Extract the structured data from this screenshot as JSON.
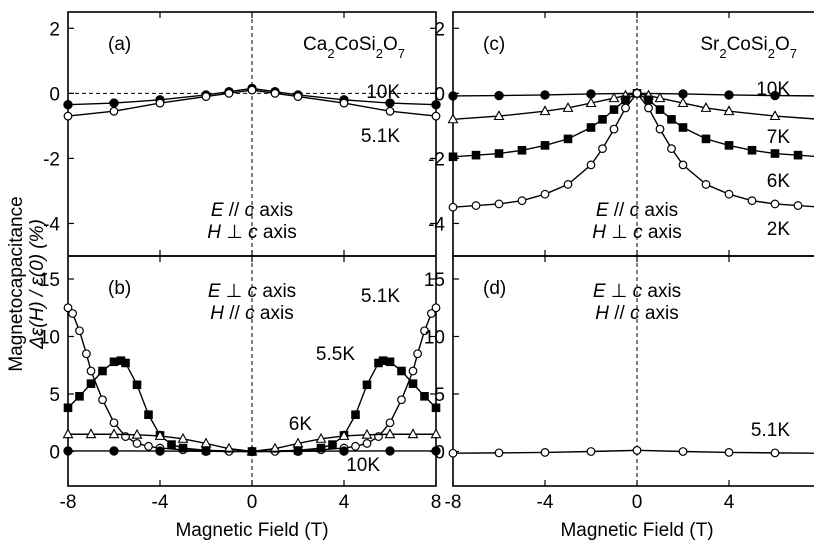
{
  "figure": {
    "ylabel_line1": "Magnetocapacitance",
    "ylabel_line2": "Δε(H) / ε(0) (%)",
    "xlabel": "Magnetic Field (T)",
    "colors": {
      "ink": "#000000",
      "open": "#ffffff",
      "background": "#ffffff"
    }
  },
  "chart_data": [
    {
      "panel": "a",
      "type": "scatter",
      "label": "(a)",
      "compound": "Ca2CoSi2O7",
      "compound_parts": [
        "Ca",
        "2",
        "CoSi",
        "2",
        "O",
        "7"
      ],
      "xlim": [
        -8,
        8
      ],
      "ylim": [
        -5,
        2.5
      ],
      "xticks": [
        -8,
        -4,
        0,
        4,
        8
      ],
      "yticks": [
        2,
        0,
        -2,
        -4
      ],
      "xticklabels_shown": false,
      "zero_hline": true,
      "field_annotation": [
        "E // c axis",
        "H ⊥ c axis"
      ],
      "series": [
        {
          "name": "10K",
          "marker": "filled-circle",
          "x": [
            -8,
            -6,
            -4,
            -2,
            -1,
            0,
            1,
            2,
            4,
            6,
            8
          ],
          "y": [
            -0.35,
            -0.3,
            -0.2,
            -0.05,
            0.05,
            0.15,
            0.05,
            -0.05,
            -0.2,
            -0.3,
            -0.35
          ]
        },
        {
          "name": "5.1K",
          "marker": "open-circle",
          "x": [
            -8,
            -6,
            -4,
            -2,
            -1,
            0,
            1,
            2,
            4,
            6,
            8
          ],
          "y": [
            -0.7,
            -0.55,
            -0.3,
            -0.1,
            0.0,
            0.1,
            0.0,
            -0.1,
            -0.3,
            -0.55,
            -0.7
          ]
        }
      ],
      "temp_labels": [
        "10K",
        "5.1K"
      ]
    },
    {
      "panel": "b",
      "type": "scatter",
      "label": "(b)",
      "xlim": [
        -8,
        8
      ],
      "ylim": [
        -3,
        17
      ],
      "xticks": [
        -8,
        -4,
        0,
        4,
        8
      ],
      "yticks": [
        15,
        10,
        5,
        0
      ],
      "xticklabels_shown": true,
      "field_annotation": [
        "E ⊥ c axis",
        "H // c axis"
      ],
      "series": [
        {
          "name": "5.1K",
          "marker": "open-circle",
          "x": [
            -8,
            -7.8,
            -7.5,
            -7.2,
            -7,
            -6.5,
            -6,
            -5.5,
            -5,
            -4.5,
            -4,
            -3,
            -2,
            -1,
            0,
            1,
            2,
            3,
            4,
            4.5,
            5,
            5.5,
            6,
            6.5,
            7,
            7.2,
            7.5,
            7.8,
            8
          ],
          "y": [
            12.5,
            12,
            10.5,
            8.5,
            7,
            4.5,
            2.5,
            1.3,
            0.7,
            0.45,
            0.3,
            0.15,
            0.05,
            0.01,
            0,
            0.01,
            0.05,
            0.15,
            0.3,
            0.45,
            0.7,
            1.3,
            2.5,
            4.5,
            7,
            8.5,
            10.5,
            12,
            12.5
          ]
        },
        {
          "name": "5.5K",
          "marker": "filled-square",
          "x": [
            -8,
            -7.5,
            -7,
            -6.5,
            -6,
            -5.7,
            -5.5,
            -5,
            -4.5,
            -4,
            -3.5,
            -3,
            -2,
            0,
            2,
            3,
            3.5,
            4,
            4.5,
            5,
            5.5,
            5.7,
            6,
            6.5,
            7,
            7.5,
            8
          ],
          "y": [
            3.8,
            4.8,
            5.9,
            7.0,
            7.8,
            7.9,
            7.7,
            5.8,
            3.2,
            1.4,
            0.6,
            0.3,
            0.1,
            0,
            0.1,
            0.3,
            0.6,
            1.4,
            3.2,
            5.8,
            7.7,
            7.9,
            7.8,
            7.0,
            5.9,
            4.8,
            3.8
          ]
        },
        {
          "name": "6K",
          "marker": "open-triangle",
          "x": [
            -8,
            -7,
            -6,
            -5,
            -4,
            -3,
            -2,
            -1,
            0,
            1,
            2,
            3,
            4,
            5,
            6,
            7,
            8
          ],
          "y": [
            1.5,
            1.5,
            1.5,
            1.45,
            1.35,
            1.1,
            0.7,
            0.25,
            0,
            0.25,
            0.7,
            1.1,
            1.35,
            1.45,
            1.5,
            1.5,
            1.5
          ]
        },
        {
          "name": "10K",
          "marker": "filled-circle",
          "x": [
            -8,
            -6,
            -4,
            -2,
            0,
            2,
            4,
            6,
            8
          ],
          "y": [
            0.05,
            0.05,
            0.04,
            0.02,
            0,
            0.02,
            0.04,
            0.05,
            0.05
          ]
        }
      ],
      "temp_labels": [
        "5.1K",
        "5.5K",
        "6K",
        "10K"
      ]
    },
    {
      "panel": "c",
      "type": "scatter",
      "label": "(c)",
      "compound": "Sr2CoSi2O7",
      "compound_parts": [
        "Sr",
        "2",
        "CoSi",
        "2",
        "O",
        "7"
      ],
      "xlim": [
        -8,
        8
      ],
      "ylim": [
        -5,
        2.5
      ],
      "xticks": [
        -8,
        -4,
        0,
        4,
        8
      ],
      "yticks": [
        2,
        0,
        -2,
        -4
      ],
      "xticklabels_shown": false,
      "field_annotation": [
        "E // c axis",
        "H ⊥ c axis"
      ],
      "series": [
        {
          "name": "10K",
          "marker": "filled-circle",
          "x": [
            -8,
            -6,
            -4,
            -2,
            0,
            2,
            4,
            6,
            8
          ],
          "y": [
            -0.08,
            -0.07,
            -0.05,
            -0.02,
            0,
            -0.02,
            -0.05,
            -0.07,
            -0.08
          ]
        },
        {
          "name": "7K",
          "marker": "open-triangle",
          "x": [
            -8,
            -6,
            -4,
            -3,
            -2,
            -1,
            -0.5,
            0,
            0.5,
            1,
            2,
            3,
            4,
            6,
            8
          ],
          "y": [
            -0.8,
            -0.7,
            -0.55,
            -0.45,
            -0.3,
            -0.15,
            -0.07,
            0,
            -0.07,
            -0.15,
            -0.3,
            -0.45,
            -0.55,
            -0.7,
            -0.8
          ]
        },
        {
          "name": "6K",
          "marker": "filled-square",
          "x": [
            -8,
            -7,
            -6,
            -5,
            -4,
            -3,
            -2,
            -1.5,
            -1,
            -0.5,
            0,
            0.5,
            1,
            1.5,
            2,
            3,
            4,
            5,
            6,
            7,
            8
          ],
          "y": [
            -1.95,
            -1.9,
            -1.85,
            -1.75,
            -1.6,
            -1.4,
            -1.05,
            -0.8,
            -0.5,
            -0.2,
            0,
            -0.2,
            -0.5,
            -0.8,
            -1.05,
            -1.4,
            -1.6,
            -1.75,
            -1.85,
            -1.9,
            -1.95
          ]
        },
        {
          "name": "2K",
          "marker": "open-circle",
          "x": [
            -8,
            -7,
            -6,
            -5,
            -4,
            -3,
            -2,
            -1.5,
            -1,
            -0.5,
            0,
            0.5,
            1,
            1.5,
            2,
            3,
            4,
            5,
            6,
            7,
            8
          ],
          "y": [
            -3.5,
            -3.45,
            -3.4,
            -3.3,
            -3.1,
            -2.8,
            -2.2,
            -1.7,
            -1.1,
            -0.45,
            0,
            -0.45,
            -1.1,
            -1.7,
            -2.2,
            -2.8,
            -3.1,
            -3.3,
            -3.4,
            -3.45,
            -3.5
          ]
        }
      ],
      "temp_labels": [
        "10K",
        "7K",
        "6K",
        "2K"
      ]
    },
    {
      "panel": "d",
      "type": "scatter",
      "label": "(d)",
      "xlim": [
        -8,
        8
      ],
      "ylim": [
        -3,
        17
      ],
      "xticks": [
        -8,
        -4,
        0,
        4,
        8
      ],
      "yticks": [
        15,
        10,
        5,
        0
      ],
      "xticklabels_shown": true,
      "field_annotation": [
        "E ⊥ c axis",
        "H // c axis"
      ],
      "series": [
        {
          "name": "5.1K",
          "marker": "open-circle",
          "x": [
            -8,
            -6,
            -4,
            -2,
            0,
            2,
            4,
            6,
            8
          ],
          "y": [
            -0.15,
            -0.12,
            -0.08,
            0,
            0.1,
            0,
            -0.08,
            -0.12,
            -0.15
          ]
        }
      ],
      "temp_labels": [
        "5.1K"
      ]
    }
  ]
}
